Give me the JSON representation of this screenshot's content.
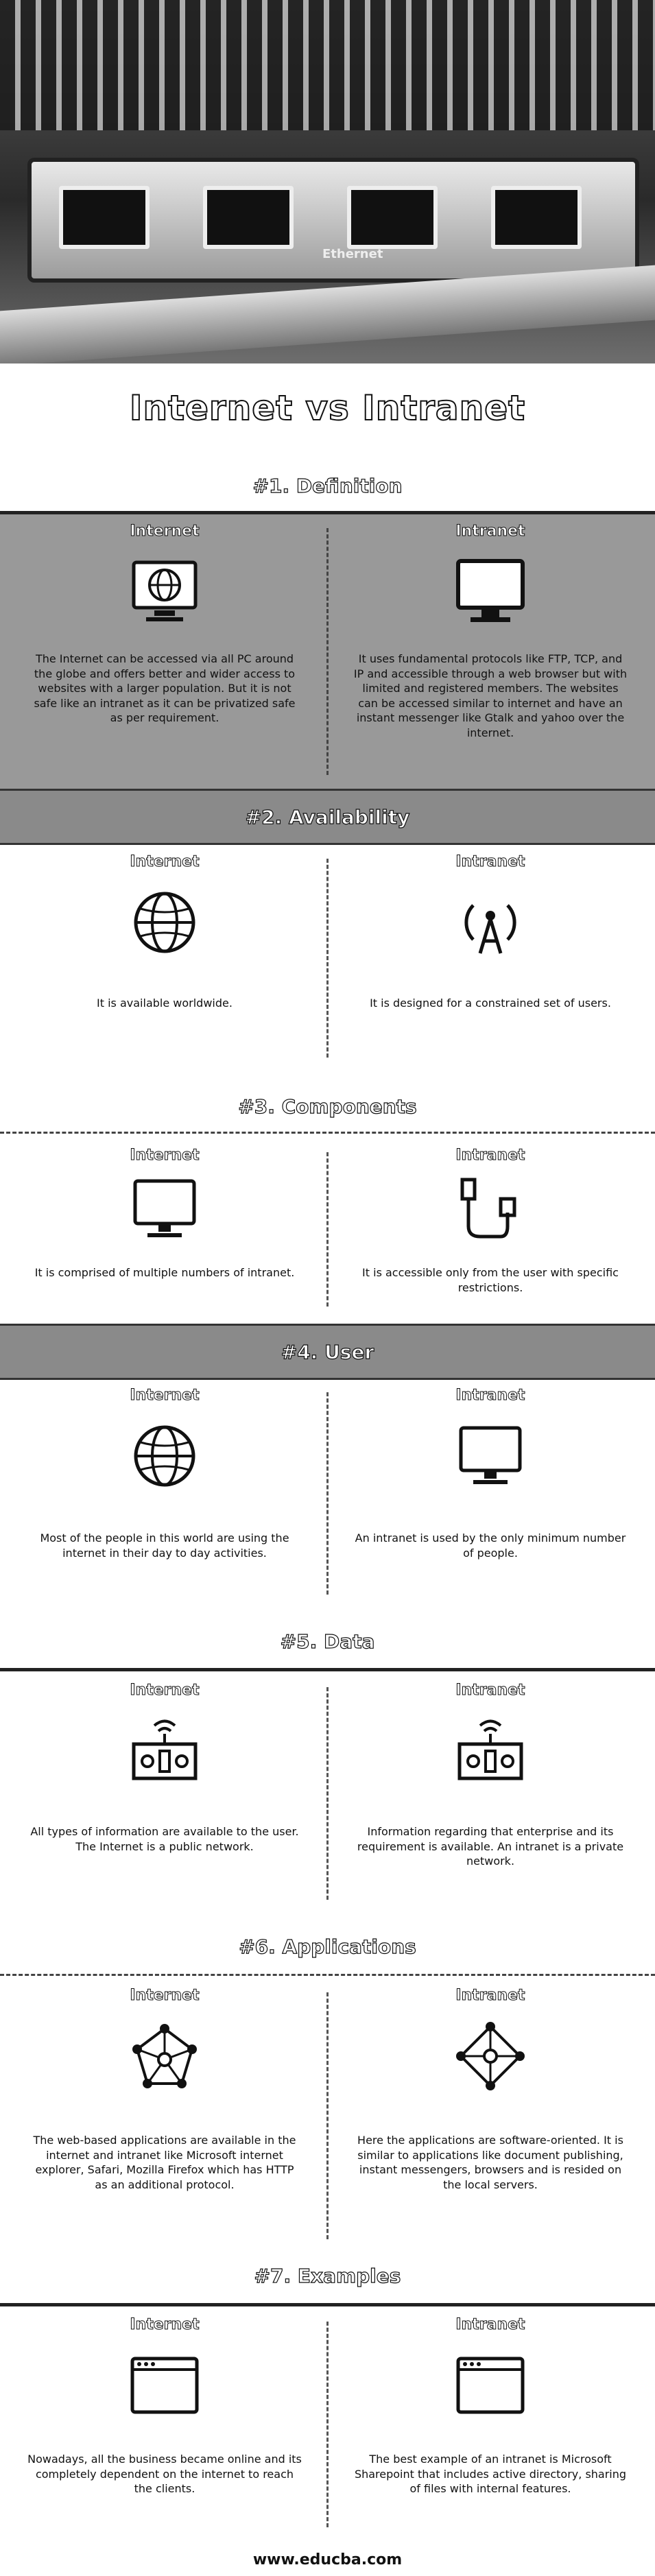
{
  "title": "Internet vs Intranet",
  "hero_label": "Ethernet",
  "footer": "www.educba.com",
  "sections": [
    {
      "heading": "#1. Definition",
      "internet_label": "Internet",
      "internet_text": "The Internet can be accessed via all PC around the globe and offers better and wider access to websites with a larger population. But it is not safe like an intranet as it can be privatized safe as per requirement.",
      "intranet_label": "Intranet",
      "intranet_text": "It uses fundamental protocols like FTP, TCP, and IP and accessible through a web browser but with limited and registered members. The websites can be accessed similar to internet and have an instant messenger like Gtalk and yahoo over the internet."
    },
    {
      "heading": "#2. Availability",
      "internet_label": "Internet",
      "internet_text": "It is available worldwide.",
      "intranet_label": "Intranet",
      "intranet_text": "It is designed for a constrained set of users."
    },
    {
      "heading": "#3. Components",
      "internet_label": "Internet",
      "internet_text": "It is comprised of multiple numbers of intranet.",
      "intranet_label": "Intranet",
      "intranet_text": "It is accessible only from the user with specific restrictions."
    },
    {
      "heading": "#4. User",
      "internet_label": "Internet",
      "internet_text": "Most of the people in this world are using the internet in their day to day activities.",
      "intranet_label": "Intranet",
      "intranet_text": "An intranet is used by the only minimum number of people."
    },
    {
      "heading": "#5. Data",
      "internet_label": "Internet",
      "internet_text": "All types of information are available to the user. The Internet is a public network.",
      "intranet_label": "Intranet",
      "intranet_text": "Information regarding that enterprise and its requirement is available. An intranet is a private network."
    },
    {
      "heading": "#6. Applications",
      "internet_label": "Internet",
      "internet_text": "The web-based applications are available in the internet and intranet like Microsoft internet explorer, Safari, Mozilla Firefox which has HTTP as an additional protocol.",
      "intranet_label": "Intranet",
      "intranet_text": "Here the applications are software-oriented. It is similar to applications like document publishing, instant messengers, browsers and is resided on the local servers."
    },
    {
      "heading": "#7. Examples",
      "internet_label": "Internet",
      "internet_text": "Nowadays, all the business became online and its completely dependent on the internet to reach the clients.",
      "intranet_label": "Intranet",
      "intranet_text": "The best example of an intranet is Microsoft Sharepoint that includes active directory, sharing of files with internal features."
    }
  ]
}
